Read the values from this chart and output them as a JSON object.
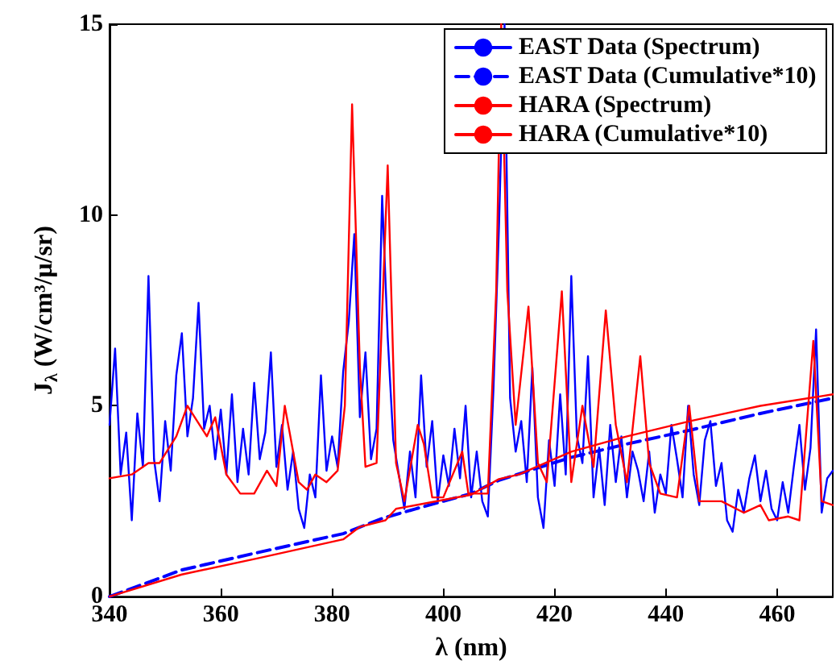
{
  "chart_data": {
    "type": "line",
    "xlabel": "λ (nm)",
    "ylabel": "J$_{λ}$ (W/cm³/μ/sr)",
    "xlim": [
      340,
      470
    ],
    "xticks": [
      340,
      360,
      380,
      400,
      420,
      440,
      460
    ],
    "ylim": [
      0,
      15
    ],
    "yticks": [
      0,
      5,
      10,
      15
    ],
    "grid": false,
    "legend": "top right",
    "marker": "none",
    "series": [
      {
        "name": "EAST Data (Spectrum)",
        "color": "#0000ff",
        "line_style": "solid",
        "x": [
          340,
          341,
          342,
          343,
          344,
          345,
          346,
          347,
          348,
          349,
          350,
          351,
          352,
          353,
          354,
          355,
          356,
          357,
          358,
          359,
          360,
          361,
          362,
          363,
          364,
          365,
          366,
          367,
          368,
          369,
          370,
          371,
          372,
          373,
          374,
          375,
          376,
          377,
          378,
          379,
          380,
          381,
          382,
          383,
          384,
          385,
          386,
          387,
          388,
          389,
          390,
          391,
          392,
          393,
          394,
          395,
          396,
          397,
          398,
          399,
          400,
          401,
          402,
          403,
          404,
          405,
          406,
          407,
          408,
          409,
          410,
          411,
          412,
          413,
          414,
          415,
          416,
          417,
          418,
          419,
          420,
          421,
          422,
          423,
          424,
          425,
          426,
          427,
          428,
          429,
          430,
          431,
          432,
          433,
          434,
          435,
          436,
          437,
          438,
          439,
          440,
          441,
          442,
          443,
          444,
          445,
          446,
          447,
          448,
          449,
          450,
          451,
          452,
          453,
          454,
          455,
          456,
          457,
          458,
          459,
          460,
          461,
          462,
          463,
          464,
          465,
          466,
          467,
          468,
          469,
          470
        ],
        "values": [
          4.5,
          6.5,
          3.2,
          4.3,
          2.0,
          4.8,
          3.4,
          8.4,
          3.6,
          2.5,
          4.6,
          3.3,
          5.8,
          6.9,
          4.2,
          5.2,
          7.7,
          4.4,
          5.0,
          3.6,
          4.9,
          3.2,
          5.3,
          3.0,
          4.4,
          3.2,
          5.6,
          3.6,
          4.3,
          6.4,
          3.4,
          4.5,
          2.8,
          3.8,
          2.3,
          1.8,
          3.2,
          2.6,
          5.8,
          3.3,
          4.2,
          3.4,
          5.9,
          7.2,
          9.5,
          4.7,
          6.4,
          3.6,
          4.4,
          10.5,
          6.8,
          4.1,
          3.2,
          2.3,
          3.8,
          2.6,
          5.8,
          3.4,
          4.6,
          2.5,
          3.7,
          2.9,
          4.4,
          3.1,
          5.0,
          2.6,
          3.8,
          2.5,
          2.1,
          5.4,
          9.7,
          15,
          5.2,
          3.8,
          4.6,
          3.0,
          6.0,
          2.6,
          1.8,
          4.1,
          2.9,
          5.3,
          3.2,
          8.4,
          4.2,
          3.5,
          6.3,
          2.6,
          3.9,
          2.4,
          4.5,
          3.0,
          4.2,
          2.6,
          3.8,
          3.3,
          2.5,
          3.8,
          2.2,
          3.2,
          2.7,
          4.5,
          3.6,
          2.6,
          5.0,
          3.2,
          2.4,
          4.1,
          4.6,
          2.9,
          3.5,
          2.0,
          1.7,
          2.8,
          2.2,
          3.1,
          3.7,
          2.5,
          3.3,
          2.3,
          2.0,
          3.0,
          2.2,
          3.4,
          4.5,
          2.8,
          3.9,
          7.0,
          2.2,
          3.1,
          3.3
        ]
      },
      {
        "name": "EAST Data (Cumulative*10)",
        "color": "#0000ff",
        "line_style": "dashed",
        "x": [
          340,
          353,
          366.5,
          382,
          389,
          395,
          405,
          410,
          423,
          433,
          444,
          457,
          470
        ],
        "values": [
          0,
          0.7,
          1.15,
          1.65,
          2.05,
          2.3,
          2.7,
          3.05,
          3.65,
          4.0,
          4.35,
          4.8,
          5.2
        ]
      },
      {
        "name": "HARA (Spectrum)",
        "color": "#ff0000",
        "line_style": "solid",
        "x": [
          340,
          344,
          347,
          349,
          352,
          354,
          357.5,
          359,
          361,
          363.5,
          366,
          368.3,
          370,
          371.5,
          374,
          375.5,
          377,
          379,
          381,
          382.3,
          383.6,
          385,
          386,
          388,
          390,
          391.5,
          393,
          395.4,
          396.5,
          398,
          400,
          403.4,
          404.5,
          408,
          409.5,
          410.4,
          411.5,
          413,
          415.3,
          417,
          418.6,
          421.3,
          423,
          425,
          427,
          429.2,
          431,
          433,
          435.4,
          437,
          439,
          442,
          444.2,
          446,
          450,
          454,
          457,
          458.5,
          462,
          464,
          466.5,
          468,
          470
        ],
        "values": [
          3.1,
          3.2,
          3.5,
          3.5,
          4.2,
          5.0,
          4.2,
          4.7,
          3.2,
          2.7,
          2.7,
          3.3,
          2.9,
          5.0,
          3.0,
          2.8,
          3.2,
          3.0,
          3.3,
          5.0,
          12.9,
          6.0,
          3.4,
          3.5,
          11.3,
          3.5,
          2.5,
          4.5,
          4.0,
          2.6,
          2.6,
          3.8,
          2.7,
          2.7,
          8.0,
          15,
          8.0,
          4.5,
          7.6,
          3.5,
          3.0,
          8.0,
          3.0,
          5.0,
          3.4,
          7.5,
          4.5,
          3.0,
          6.3,
          3.5,
          2.7,
          2.6,
          5.0,
          2.5,
          2.5,
          2.2,
          2.4,
          2.0,
          2.1,
          2.0,
          6.7,
          2.5,
          2.4
        ]
      },
      {
        "name": "HARA (Cumulative*10)",
        "color": "#ff0000",
        "line_style": "solid",
        "x": [
          340,
          353,
          366.5,
          382,
          385,
          389.6,
          391.5,
          405,
          410,
          413.6,
          423,
          433,
          444.4,
          457,
          470
        ],
        "values": [
          0,
          0.58,
          1.0,
          1.5,
          1.83,
          2.0,
          2.3,
          2.67,
          3.08,
          3.2,
          3.8,
          4.2,
          4.6,
          5.0,
          5.3
        ]
      }
    ]
  }
}
